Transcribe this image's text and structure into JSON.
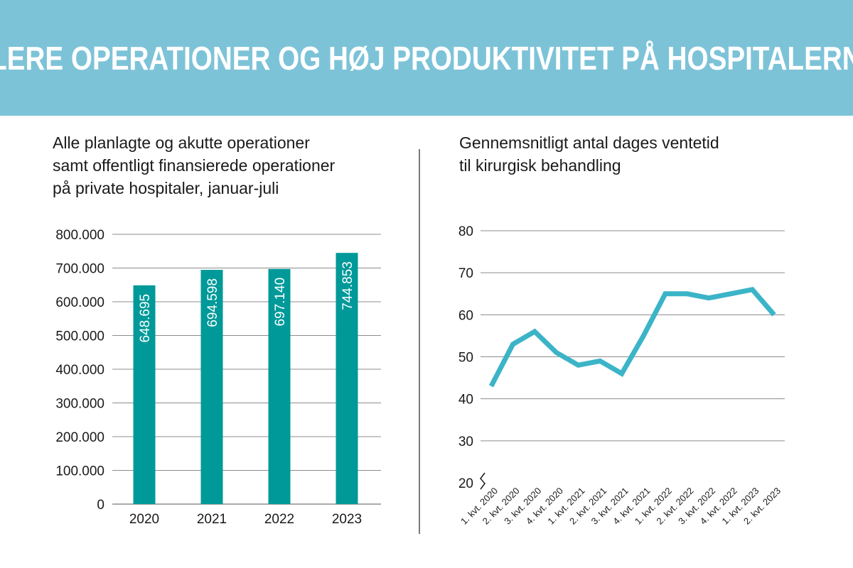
{
  "header": {
    "title": "FLERE OPERATIONER OG HØJ PRODUKTIVITET PÅ HOSPITALERNE"
  },
  "colors": {
    "banner": "#7dc3d8",
    "bar": "#009999",
    "line": "#3cb4c8",
    "grid": "#8c8c8c"
  },
  "chart_data": [
    {
      "type": "bar",
      "title": "Alle planlagte og akutte operationer samt offentligt finansierede operationer på private hospitaler, januar-juli",
      "title_lines": [
        "Alle planlagte og akutte operationer",
        "samt offentligt finansierede operationer",
        "på private hospitaler, januar-juli"
      ],
      "categories": [
        "2020",
        "2021",
        "2022",
        "2023"
      ],
      "values": [
        648695,
        694598,
        697140,
        744853
      ],
      "value_labels": [
        "648.695",
        "694.598",
        "697.140",
        "744.853"
      ],
      "ylim": [
        0,
        800000
      ],
      "yticks": [
        0,
        100000,
        200000,
        300000,
        400000,
        500000,
        600000,
        700000,
        800000
      ],
      "ytick_labels": [
        "0",
        "100.000",
        "200.000",
        "300.000",
        "400.000",
        "500.000",
        "600.000",
        "700.000",
        "800.000"
      ],
      "grid": true
    },
    {
      "type": "line",
      "title": "Gennemsnitligt antal dages ventetid til kirurgisk behandling",
      "title_lines": [
        "Gennemsnitligt antal dages ventetid",
        "til kirurgisk behandling"
      ],
      "categories": [
        "1. kvt. 2020",
        "2. kvt. 2020",
        "3. kvt. 2020",
        "4. kvt. 2020",
        "1. kvt. 2021",
        "2. kvt. 2021",
        "3. kvt. 2021",
        "4. kvt. 2021",
        "1. kvt. 2022",
        "2. kvt. 2022",
        "3. kvt. 2022",
        "4. kvt. 2022",
        "1. kvt. 2023",
        "2. kvt. 2023"
      ],
      "values": [
        43,
        53,
        56,
        51,
        48,
        49,
        46,
        55,
        65,
        65,
        64,
        65,
        66,
        60
      ],
      "ylim": [
        20,
        80
      ],
      "yticks": [
        20,
        30,
        40,
        50,
        60,
        70,
        80
      ],
      "ytick_labels": [
        "20",
        "30",
        "40",
        "50",
        "60",
        "70",
        "80"
      ],
      "axis_break": true,
      "grid": true
    }
  ]
}
